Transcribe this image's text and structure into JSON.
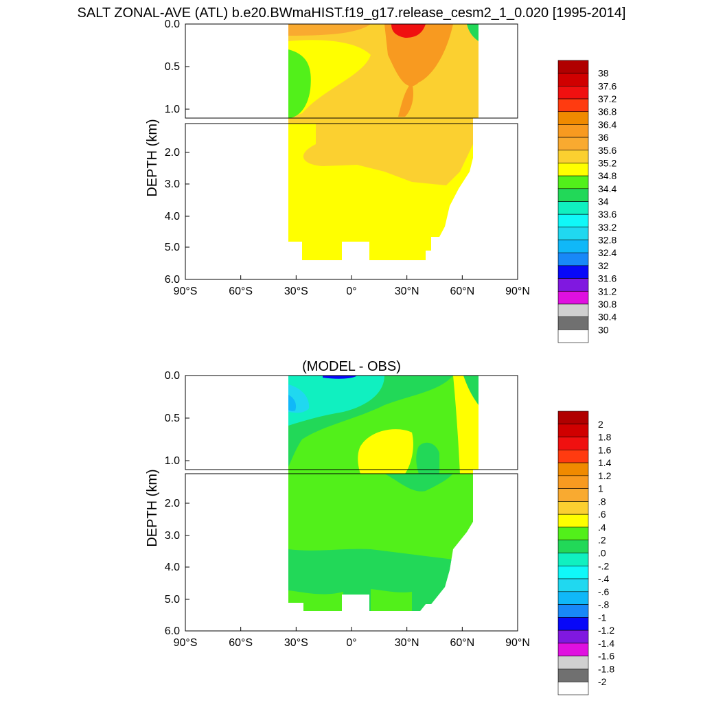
{
  "title": "SALT ZONAL-AVE (ATL) b.e20.BWmaHIST.f19_g17.release_cesm2_1_0.020 [1995-2014]",
  "chart_data": [
    {
      "type": "heatmap",
      "title": "",
      "ylabel": "DEPTH (km)",
      "x_ticks": [
        "90°S",
        "60°S",
        "30°S",
        "0°",
        "30°N",
        "60°N",
        "90°N"
      ],
      "upper_y_ticks": [
        "0.0",
        "0.5",
        "1.0"
      ],
      "lower_y_ticks": [
        "2.0",
        "3.0",
        "4.0",
        "5.0",
        "6.0"
      ],
      "xlim": [
        -90,
        90
      ],
      "ylim_km": [
        0,
        6
      ],
      "colorbar": {
        "labels": [
          "38",
          "37.6",
          "37.2",
          "36.8",
          "36.4",
          "36",
          "35.6",
          "35.2",
          "34.8",
          "34.4",
          "34",
          "33.6",
          "33.2",
          "32.8",
          "32.4",
          "32",
          "31.6",
          "31.2",
          "30.8",
          "30.4",
          "30"
        ],
        "colors": [
          "#b00000",
          "#d00000",
          "#f01010",
          "#ff3b10",
          "#f08a00",
          "#f89a20",
          "#f9aa30",
          "#fbd030",
          "#ffff00",
          "#52f01a",
          "#22d858",
          "#10f0c0",
          "#10f8f8",
          "#20d8f0",
          "#10b8f8",
          "#1888f8",
          "#0808f8",
          "#8018e0",
          "#e010e0",
          "#d0d0d0",
          "#707070",
          "#ffffff"
        ]
      },
      "data_extent_lat": [
        -35,
        67
      ],
      "bottom_depth_km": 5.4,
      "salinity_zones": {
        "background": "35.0",
        "deep_upper_layer": "35.2-35.6",
        "max_subtropical_north": "37.2+"
      }
    },
    {
      "type": "heatmap",
      "title": "(MODEL - OBS)",
      "ylabel": "DEPTH (km)",
      "x_ticks": [
        "90°S",
        "60°S",
        "30°S",
        "0°",
        "30°N",
        "60°N",
        "90°N"
      ],
      "upper_y_ticks": [
        "0.0",
        "0.5",
        "1.0"
      ],
      "lower_y_ticks": [
        "2.0",
        "3.0",
        "4.0",
        "5.0",
        "6.0"
      ],
      "xlim": [
        -90,
        90
      ],
      "ylim_km": [
        0,
        6
      ],
      "colorbar": {
        "labels": [
          "2",
          "1.8",
          "1.6",
          "1.4",
          "1.2",
          "1",
          ".8",
          ".6",
          ".4",
          ".2",
          ".0",
          "-.2",
          "-.4",
          "-.6",
          "-.8",
          "-1",
          "-1.2",
          "-1.4",
          "-1.6",
          "-1.8",
          "-2"
        ],
        "colors": [
          "#b00000",
          "#d00000",
          "#f01010",
          "#ff3b10",
          "#f08a00",
          "#f89a20",
          "#f9aa30",
          "#fbd030",
          "#ffff00",
          "#52f01a",
          "#22d858",
          "#10f0c0",
          "#10f8f8",
          "#20d8f0",
          "#10b8f8",
          "#1888f8",
          "#0808f8",
          "#8018e0",
          "#e010e0",
          "#d0d0d0",
          "#707070",
          "#ffffff"
        ]
      },
      "data_extent_lat": [
        -35,
        67
      ],
      "bottom_depth_km": 5.4,
      "bias_zones": {
        "background": "0.2-0.4",
        "deep": "0.0-0.2",
        "surface_southern": "-0.6 to -0.2"
      }
    }
  ]
}
